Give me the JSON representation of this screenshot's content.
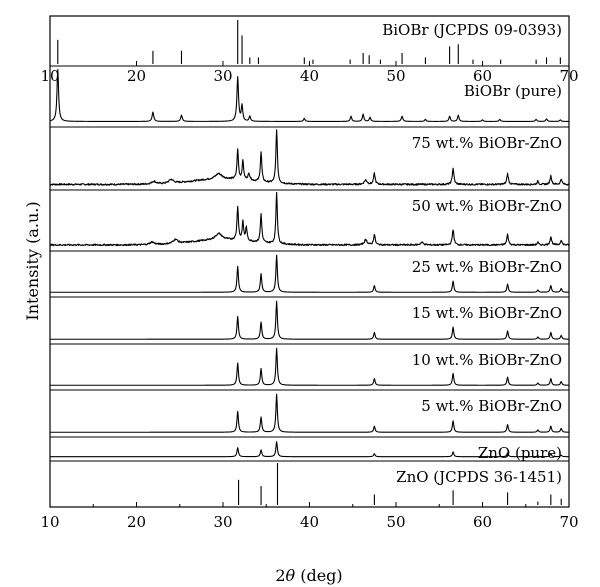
{
  "chart_data": {
    "type": "line",
    "title": "",
    "xlabel": "2θ (deg)",
    "xlabel_parts": {
      "prefix": "2",
      "symbol": "θ",
      "suffix": " (deg)"
    },
    "ylabel": "Intensity (a.u.)",
    "xlim": [
      10,
      70
    ],
    "x_ticks": [
      10,
      20,
      30,
      40,
      50,
      60,
      70
    ],
    "grid": false,
    "panels": [
      {
        "name": "BiOBr (JCPDS 09-0393)",
        "kind": "reference",
        "sticks": [
          [
            10.9,
            0.55
          ],
          [
            21.9,
            0.3
          ],
          [
            25.2,
            0.3
          ],
          [
            31.7,
            1.0
          ],
          [
            32.2,
            0.65
          ],
          [
            33.1,
            0.15
          ],
          [
            34.1,
            0.15
          ],
          [
            39.4,
            0.15
          ],
          [
            40.4,
            0.1
          ],
          [
            44.7,
            0.1
          ],
          [
            46.2,
            0.25
          ],
          [
            46.9,
            0.2
          ],
          [
            48.2,
            0.1
          ],
          [
            50.7,
            0.25
          ],
          [
            53.4,
            0.15
          ],
          [
            56.2,
            0.4
          ],
          [
            57.2,
            0.45
          ],
          [
            58.9,
            0.1
          ],
          [
            62.1,
            0.1
          ],
          [
            66.2,
            0.1
          ],
          [
            67.4,
            0.15
          ],
          [
            69.0,
            0.15
          ]
        ]
      },
      {
        "name": "BiOBr (pure)",
        "kind": "pattern",
        "baseline": 0.03,
        "noise": 0.0,
        "hump": 0.0,
        "peaks": [
          [
            10.9,
            1.0,
            0.22
          ],
          [
            21.9,
            0.18,
            0.22
          ],
          [
            25.2,
            0.12,
            0.22
          ],
          [
            31.7,
            0.85,
            0.22
          ],
          [
            32.2,
            0.3,
            0.2
          ],
          [
            33.1,
            0.1,
            0.2
          ],
          [
            39.4,
            0.06,
            0.2
          ],
          [
            44.8,
            0.1,
            0.2
          ],
          [
            46.2,
            0.14,
            0.2
          ],
          [
            47.0,
            0.08,
            0.2
          ],
          [
            50.7,
            0.1,
            0.22
          ],
          [
            53.4,
            0.04,
            0.2
          ],
          [
            56.2,
            0.1,
            0.2
          ],
          [
            57.2,
            0.12,
            0.2
          ],
          [
            60.0,
            0.03,
            0.2
          ],
          [
            62.0,
            0.04,
            0.2
          ],
          [
            66.2,
            0.04,
            0.2
          ],
          [
            67.4,
            0.05,
            0.2
          ],
          [
            69.0,
            0.03,
            0.2
          ]
        ]
      },
      {
        "name": "75 wt.% BiOBr-ZnO",
        "kind": "pattern",
        "baseline": 0.03,
        "noise": 0.03,
        "hump": 0.1,
        "peaks": [
          [
            22.0,
            0.05,
            0.6
          ],
          [
            24.0,
            0.07,
            0.6
          ],
          [
            29.5,
            0.1,
            0.9
          ],
          [
            31.7,
            0.55,
            0.2
          ],
          [
            32.3,
            0.35,
            0.2
          ],
          [
            33.0,
            0.12,
            0.3
          ],
          [
            34.4,
            0.55,
            0.2
          ],
          [
            36.2,
            1.0,
            0.2
          ],
          [
            46.5,
            0.08,
            0.4
          ],
          [
            47.5,
            0.2,
            0.22
          ],
          [
            56.6,
            0.3,
            0.22
          ],
          [
            62.9,
            0.2,
            0.22
          ],
          [
            66.4,
            0.06,
            0.2
          ],
          [
            67.9,
            0.16,
            0.22
          ],
          [
            69.1,
            0.1,
            0.2
          ]
        ]
      },
      {
        "name": "50 wt.% BiOBr-ZnO",
        "kind": "pattern",
        "baseline": 0.04,
        "noise": 0.03,
        "hump": 0.1,
        "peaks": [
          [
            21.8,
            0.05,
            0.6
          ],
          [
            24.5,
            0.08,
            0.6
          ],
          [
            29.5,
            0.12,
            0.9
          ],
          [
            31.7,
            0.65,
            0.2
          ],
          [
            32.3,
            0.35,
            0.2
          ],
          [
            32.7,
            0.25,
            0.2
          ],
          [
            34.4,
            0.55,
            0.2
          ],
          [
            36.2,
            1.0,
            0.2
          ],
          [
            46.5,
            0.1,
            0.4
          ],
          [
            47.5,
            0.2,
            0.22
          ],
          [
            53.0,
            0.05,
            0.4
          ],
          [
            56.6,
            0.3,
            0.22
          ],
          [
            62.9,
            0.2,
            0.22
          ],
          [
            66.4,
            0.05,
            0.2
          ],
          [
            67.9,
            0.16,
            0.22
          ],
          [
            69.1,
            0.1,
            0.2
          ]
        ]
      },
      {
        "name": "25 wt.% BiOBr-ZnO",
        "kind": "pattern",
        "baseline": 0.02,
        "noise": 0.0,
        "hump": 0.0,
        "peaks": [
          [
            31.7,
            0.7,
            0.2
          ],
          [
            34.4,
            0.5,
            0.2
          ],
          [
            36.2,
            1.0,
            0.2
          ],
          [
            47.5,
            0.18,
            0.2
          ],
          [
            56.6,
            0.3,
            0.2
          ],
          [
            62.9,
            0.22,
            0.2
          ],
          [
            66.4,
            0.06,
            0.2
          ],
          [
            67.9,
            0.18,
            0.2
          ],
          [
            69.1,
            0.1,
            0.2
          ]
        ]
      },
      {
        "name": "15 wt.% BiOBr-ZnO",
        "kind": "pattern",
        "baseline": 0.02,
        "noise": 0.0,
        "hump": 0.0,
        "peaks": [
          [
            31.7,
            0.6,
            0.2
          ],
          [
            34.4,
            0.45,
            0.2
          ],
          [
            36.2,
            1.0,
            0.2
          ],
          [
            47.5,
            0.18,
            0.2
          ],
          [
            56.6,
            0.32,
            0.2
          ],
          [
            62.9,
            0.22,
            0.2
          ],
          [
            66.4,
            0.06,
            0.2
          ],
          [
            67.9,
            0.18,
            0.2
          ],
          [
            69.1,
            0.1,
            0.2
          ]
        ]
      },
      {
        "name": "10 wt.% BiOBr-ZnO",
        "kind": "pattern",
        "baseline": 0.02,
        "noise": 0.0,
        "hump": 0.0,
        "peaks": [
          [
            31.7,
            0.6,
            0.2
          ],
          [
            34.4,
            0.45,
            0.2
          ],
          [
            36.2,
            1.0,
            0.2
          ],
          [
            47.5,
            0.18,
            0.2
          ],
          [
            56.6,
            0.32,
            0.2
          ],
          [
            62.9,
            0.22,
            0.2
          ],
          [
            66.4,
            0.06,
            0.2
          ],
          [
            67.9,
            0.18,
            0.2
          ],
          [
            69.1,
            0.1,
            0.2
          ]
        ]
      },
      {
        "name": "5 wt.% BiOBr-ZnO",
        "kind": "pattern",
        "baseline": 0.02,
        "noise": 0.0,
        "hump": 0.0,
        "peaks": [
          [
            31.7,
            0.55,
            0.2
          ],
          [
            34.4,
            0.4,
            0.2
          ],
          [
            36.2,
            1.0,
            0.2
          ],
          [
            47.5,
            0.16,
            0.2
          ],
          [
            56.6,
            0.3,
            0.2
          ],
          [
            62.9,
            0.2,
            0.2
          ],
          [
            66.4,
            0.06,
            0.2
          ],
          [
            67.9,
            0.16,
            0.2
          ],
          [
            69.1,
            0.1,
            0.2
          ]
        ]
      },
      {
        "name": "ZnO (pure)",
        "kind": "pattern",
        "baseline": 0.02,
        "noise": 0.0,
        "hump": 0.0,
        "peaks": [
          [
            31.7,
            0.6,
            0.2
          ],
          [
            34.4,
            0.45,
            0.2
          ],
          [
            36.2,
            1.0,
            0.2
          ],
          [
            47.5,
            0.2,
            0.2
          ],
          [
            56.6,
            0.32,
            0.2
          ],
          [
            62.9,
            0.25,
            0.2
          ],
          [
            66.4,
            0.06,
            0.2
          ],
          [
            67.9,
            0.2,
            0.2
          ],
          [
            69.1,
            0.1,
            0.2
          ]
        ]
      },
      {
        "name": "ZnO (JCPDS 36-1451)",
        "kind": "reference",
        "sticks": [
          [
            31.8,
            0.6
          ],
          [
            34.4,
            0.45
          ],
          [
            36.3,
            1.0
          ],
          [
            47.5,
            0.25
          ],
          [
            56.6,
            0.35
          ],
          [
            62.9,
            0.3
          ],
          [
            66.4,
            0.08
          ],
          [
            67.9,
            0.25
          ],
          [
            69.1,
            0.15
          ]
        ]
      }
    ]
  }
}
